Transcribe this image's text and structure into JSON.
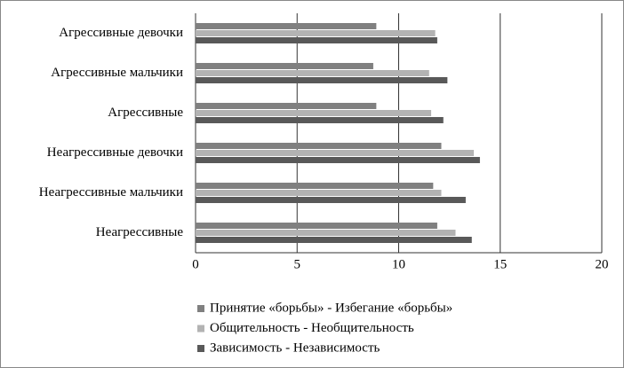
{
  "chart_data": {
    "type": "hbar",
    "categories": [
      "Агрессивные девочки",
      "Агрессивные мальчики",
      "Агрессивные",
      "Неагрессивные девочки",
      "Неагрессивные мальчики",
      "Неагрессивные"
    ],
    "series": [
      {
        "name": "Принятие «борьбы» - Избегание «борьбы»",
        "color": "#808080",
        "values": [
          8.9,
          8.75,
          8.9,
          12.1,
          11.7,
          11.9
        ]
      },
      {
        "name": "Общительность - Необщительность",
        "color": "#b3b3b3",
        "values": [
          11.8,
          11.5,
          11.6,
          13.7,
          12.1,
          12.8
        ]
      },
      {
        "name": "Зависимость - Независимость",
        "color": "#595959",
        "values": [
          11.9,
          12.4,
          12.2,
          14.0,
          13.3,
          13.6
        ]
      }
    ],
    "xlim": [
      0,
      20
    ],
    "xticks": [
      0,
      5,
      10,
      15,
      20
    ],
    "grid": true
  }
}
